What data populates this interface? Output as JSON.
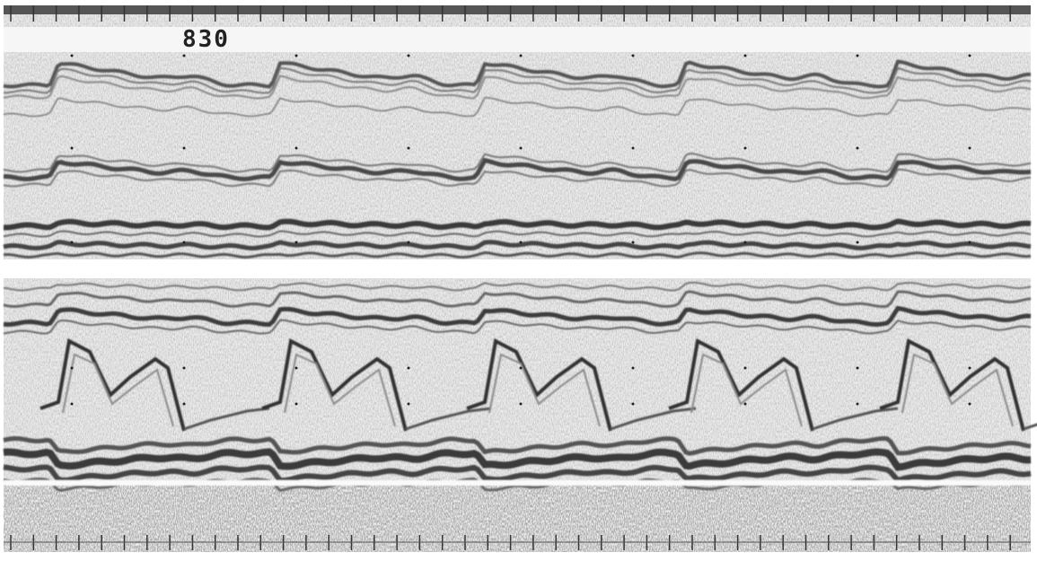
{
  "image": {
    "label": "830"
  }
}
